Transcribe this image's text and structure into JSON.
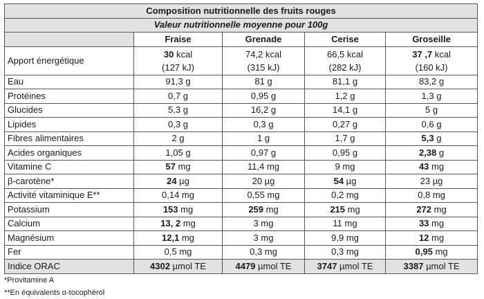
{
  "table": {
    "title": "Composition nutritionnelle des fruits rouges",
    "subtitle": "Valeur nutritionnelle moyenne pour 100g",
    "columns": [
      "Fraise",
      "Grenade",
      "Cerise",
      "Groseille"
    ],
    "energy": {
      "label": "Apport énergétique",
      "cells": [
        {
          "num": "30",
          "unit": " kcal",
          "bold": true,
          "kj": "(127 kJ)"
        },
        {
          "num": "74,2",
          "unit": " kcal",
          "bold": false,
          "kj": "(315 kJ)"
        },
        {
          "num": "66,5",
          "unit": " kcal",
          "bold": false,
          "kj": "(282 kJ)"
        },
        {
          "num": "37 ,7",
          "unit": " kcal",
          "bold": true,
          "kj": "(160 kJ)"
        }
      ]
    },
    "rows": [
      {
        "label": "Eau",
        "cells": [
          {
            "num": "91,3",
            "unit": " g",
            "bold": false
          },
          {
            "num": "81",
            "unit": " g",
            "bold": false
          },
          {
            "num": "81,1",
            "unit": " g",
            "bold": false
          },
          {
            "num": "83,2",
            "unit": " g",
            "bold": false
          }
        ]
      },
      {
        "label": "Protéines",
        "cells": [
          {
            "num": "0,7",
            "unit": " g",
            "bold": false
          },
          {
            "num": "0,95",
            "unit": " g",
            "bold": false
          },
          {
            "num": "1,2",
            "unit": " g",
            "bold": false
          },
          {
            "num": "1,3",
            "unit": " g",
            "bold": false
          }
        ]
      },
      {
        "label": "Glucides",
        "cells": [
          {
            "num": "5,3",
            "unit": " g",
            "bold": false
          },
          {
            "num": "16,2",
            "unit": " g",
            "bold": false
          },
          {
            "num": "14,1",
            "unit": " g",
            "bold": false
          },
          {
            "num": "5",
            "unit": " g",
            "bold": false
          }
        ]
      },
      {
        "label": "Lipides",
        "cells": [
          {
            "num": "0,3",
            "unit": " g",
            "bold": false
          },
          {
            "num": "0,3",
            "unit": " g",
            "bold": false
          },
          {
            "num": "0,27",
            "unit": " g",
            "bold": false
          },
          {
            "num": "0,6",
            "unit": " g",
            "bold": false
          }
        ]
      },
      {
        "label": "Fibres alimentaires",
        "cells": [
          {
            "num": "2",
            "unit": " g",
            "bold": false
          },
          {
            "num": "1",
            "unit": " g",
            "bold": false
          },
          {
            "num": "1,7",
            "unit": " g",
            "bold": false
          },
          {
            "num": "5,3",
            "unit": " g",
            "bold": true
          }
        ]
      },
      {
        "label": "Acides organiques",
        "cells": [
          {
            "num": "1,05",
            "unit": " g",
            "bold": false
          },
          {
            "num": "0,97",
            "unit": " g",
            "bold": false
          },
          {
            "num": "0,95",
            "unit": " g",
            "bold": false
          },
          {
            "num": "2,38",
            "unit": " g",
            "bold": true
          }
        ]
      },
      {
        "label": "Vitamine C",
        "cells": [
          {
            "num": "57",
            "unit": " mg",
            "bold": true
          },
          {
            "num": "11,4",
            "unit": " mg",
            "bold": false
          },
          {
            "num": "9",
            "unit": " mg",
            "bold": false
          },
          {
            "num": "43",
            "unit": " mg",
            "bold": true
          }
        ]
      },
      {
        "label": "β-carotène*",
        "cells": [
          {
            "num": "24",
            "unit": " µg",
            "bold": true
          },
          {
            "num": "20",
            "unit": " µg",
            "bold": false
          },
          {
            "num": "54",
            "unit": " µg",
            "bold": true
          },
          {
            "num": "23",
            "unit": " µg",
            "bold": false
          }
        ]
      },
      {
        "label": "Activité vitaminique E**",
        "cells": [
          {
            "num": "0,14",
            "unit": " mg",
            "bold": false
          },
          {
            "num": "0,55",
            "unit": " mg",
            "bold": false
          },
          {
            "num": "0,2",
            "unit": " mg",
            "bold": false
          },
          {
            "num": "0,8",
            "unit": " mg",
            "bold": false
          }
        ]
      },
      {
        "label": "Potassium",
        "cells": [
          {
            "num": "153",
            "unit": " mg",
            "bold": true
          },
          {
            "num": "259",
            "unit": " mg",
            "bold": true
          },
          {
            "num": "215",
            "unit": " mg",
            "bold": true
          },
          {
            "num": "272",
            "unit": " mg",
            "bold": true
          }
        ]
      },
      {
        "label": "Calcium",
        "cells": [
          {
            "num": "13, 2",
            "unit": " mg",
            "bold": true
          },
          {
            "num": "3",
            "unit": " mg",
            "bold": false
          },
          {
            "num": "11",
            "unit": " mg",
            "bold": false
          },
          {
            "num": "33",
            "unit": " mg",
            "bold": true
          }
        ]
      },
      {
        "label": "Magnésium",
        "cells": [
          {
            "num": "12,1",
            "unit": " mg",
            "bold": true
          },
          {
            "num": "3",
            "unit": " mg",
            "bold": false
          },
          {
            "num": "9,9",
            "unit": " mg",
            "bold": false
          },
          {
            "num": "12",
            "unit": " mg",
            "bold": true
          }
        ]
      },
      {
        "label": "Fer",
        "cells": [
          {
            "num": "0,5",
            "unit": " mg",
            "bold": false
          },
          {
            "num": "0,3",
            "unit": " mg",
            "bold": false
          },
          {
            "num": "0,3",
            "unit": " mg",
            "bold": false
          },
          {
            "num": "0,95",
            "unit": " mg",
            "bold": true
          }
        ]
      }
    ],
    "orac": {
      "label": "Indice ORAC",
      "cells": [
        {
          "num": "4302",
          "unit": " µmol TE",
          "bold": true
        },
        {
          "num": "4479",
          "unit": " µmol TE",
          "bold": true
        },
        {
          "num": "3747",
          "unit": " µmol TE",
          "bold": true
        },
        {
          "num": "3387",
          "unit": " µmol TE",
          "bold": true
        }
      ]
    }
  },
  "footnotes": [
    "*Provitamine A",
    "**En équivalents α-tocophérol"
  ]
}
